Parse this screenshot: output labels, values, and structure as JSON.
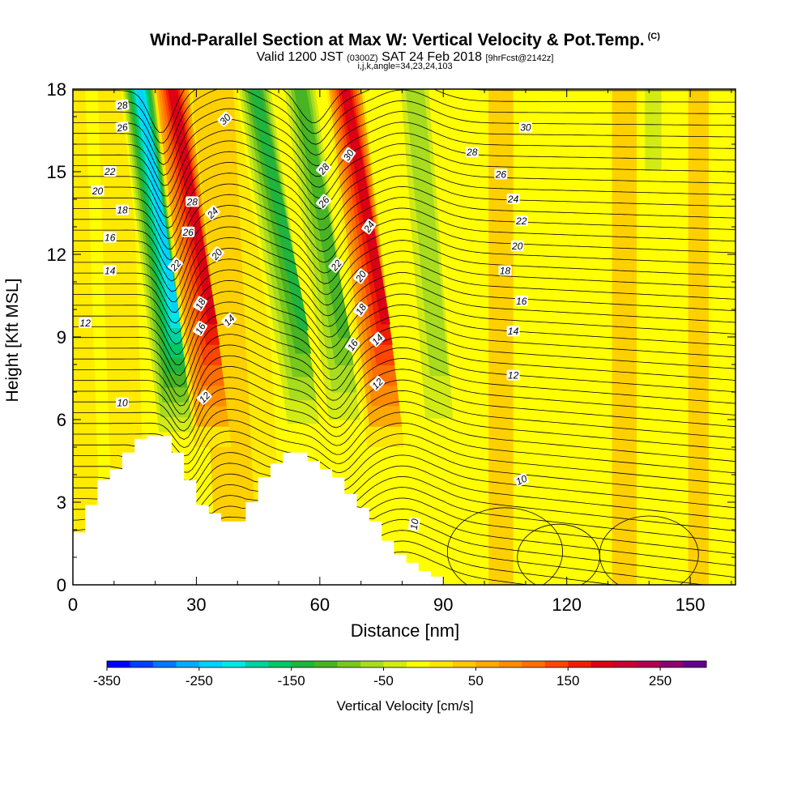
{
  "title": "Wind-Parallel Section at Max W: Vertical Velocity & Pot.Temp.",
  "copyright_mark": "(C)",
  "subtitle": {
    "valid": "Valid 1200 JST",
    "zulu": "(0300Z)",
    "date": "SAT 24 Feb 2018",
    "forecast": "[9hrFcst@2142z]"
  },
  "params": "i,j,k,angle=34,23,24,103",
  "chart_data": {
    "type": "heatmap",
    "xlabel": "Distance [nm]",
    "ylabel": "Height [Kft MSL]",
    "xlim": [
      0,
      161
    ],
    "ylim": [
      0,
      18
    ],
    "xticks": [
      "0",
      "30",
      "60",
      "90",
      "120",
      "150"
    ],
    "yticks": [
      "0",
      "3",
      "6",
      "9",
      "12",
      "15",
      "18"
    ],
    "fill_variable": "Vertical Velocity [cm/s]",
    "colorbar": {
      "label": "Vertical Velocity [cm/s]",
      "range": [
        -350,
        300
      ],
      "step": 25,
      "tick_labels": [
        "-350",
        "-250",
        "-150",
        "-50",
        "50",
        "150",
        "250"
      ],
      "colors": [
        "#0000ff",
        "#0040ff",
        "#0078ff",
        "#00aaff",
        "#00d2ff",
        "#00e6e6",
        "#00d2a0",
        "#00c864",
        "#20b43c",
        "#48b424",
        "#78c81e",
        "#a8dc1e",
        "#d2eb14",
        "#ffff00",
        "#ffe600",
        "#ffc800",
        "#ffaa00",
        "#ff8c00",
        "#ff6e00",
        "#ff4600",
        "#f01e00",
        "#dc0014",
        "#c80032",
        "#b40050",
        "#8c006e",
        "#64008c"
      ]
    },
    "contour_variable": "Potential Temperature",
    "contour_levels": [
      10,
      12,
      14,
      16,
      18,
      20,
      22,
      24,
      26,
      28,
      30
    ],
    "contour_labels": [
      "28",
      "26",
      "22",
      "20",
      "18",
      "16",
      "14",
      "12",
      "10",
      "30",
      "28",
      "24",
      "26",
      "20",
      "22",
      "18",
      "16",
      "14",
      "12",
      "30",
      "28",
      "26",
      "22",
      "20",
      "24",
      "18",
      "16",
      "14",
      "12",
      "30",
      "28",
      "26",
      "24",
      "22",
      "20",
      "18",
      "16",
      "14",
      "12",
      "10",
      "10"
    ],
    "terrain_profile": {
      "x": [
        0,
        3,
        6,
        9,
        12,
        15,
        18,
        21,
        24,
        27,
        30,
        33,
        36,
        39,
        42,
        45,
        48,
        51,
        54,
        57,
        60,
        63,
        66,
        69,
        72,
        75,
        78,
        81,
        84,
        87,
        90
      ],
      "height": [
        1.9,
        2.9,
        3.8,
        4.2,
        4.8,
        5.3,
        5.4,
        5.4,
        4.8,
        3.8,
        2.9,
        2.6,
        2.3,
        2.3,
        3.0,
        3.9,
        4.4,
        4.8,
        4.8,
        4.5,
        4.2,
        3.9,
        3.3,
        2.8,
        2.3,
        1.6,
        1.1,
        0.8,
        0.5,
        0.3,
        0.0
      ]
    },
    "features": [
      {
        "center_x": 25,
        "w_cm_s": -250
      },
      {
        "center_x": 34,
        "w_cm_s": 175
      },
      {
        "center_x": 56,
        "w_cm_s": -150
      },
      {
        "center_x": 66,
        "w_cm_s": -125
      },
      {
        "center_x": 76,
        "w_cm_s": 175
      },
      {
        "center_x": 89,
        "w_cm_s": -75
      },
      {
        "center_x": 141,
        "w_cm_s": -50
      }
    ]
  }
}
